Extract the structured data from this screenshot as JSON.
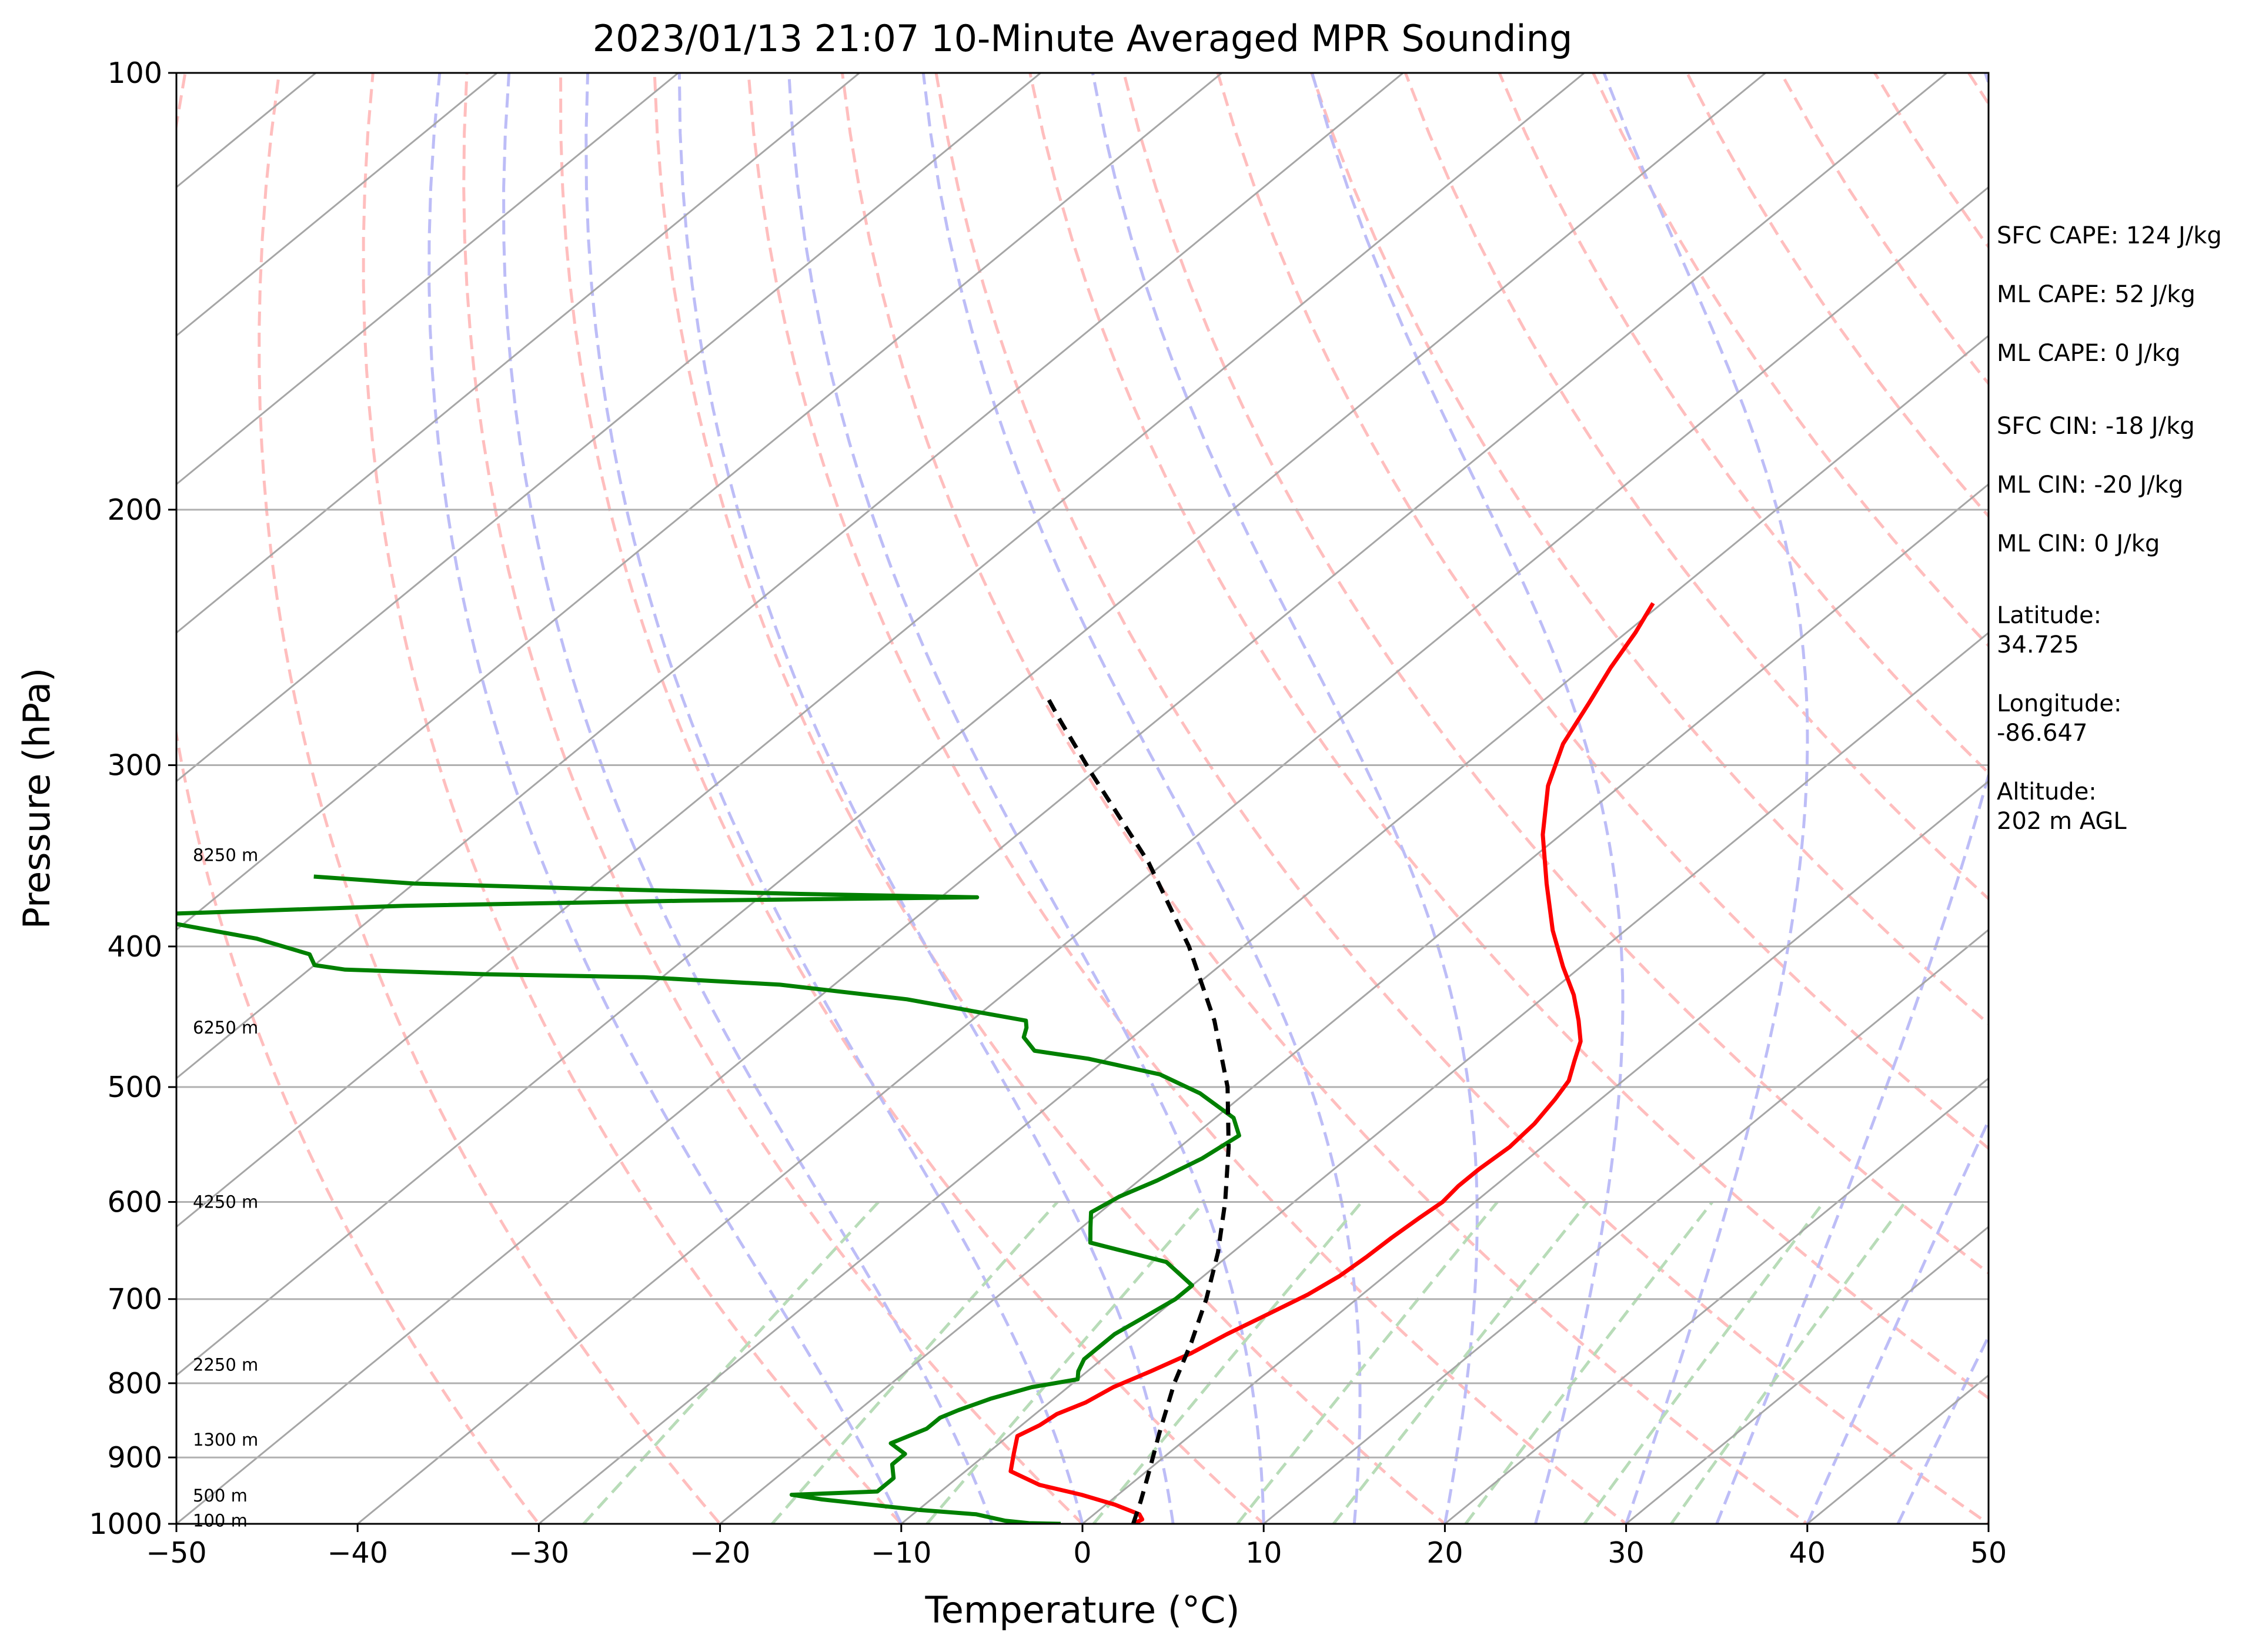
{
  "chart_data": {
    "type": "skew-t log-p",
    "title": "2023/01/13 21:07 10-Minute Averaged MPR Sounding",
    "xlabel": "Temperature (°C)",
    "ylabel": "Pressure (hPa)",
    "xlim": [
      -50,
      50
    ],
    "ylim": [
      1000,
      100
    ],
    "y_scale": "log",
    "x_ticks": [
      "−50",
      "−40",
      "−30",
      "−20",
      "−10",
      "0",
      "10",
      "20",
      "30",
      "40",
      "50"
    ],
    "y_ticks": [
      "100",
      "200",
      "300",
      "400",
      "500",
      "600",
      "700",
      "800",
      "900",
      "1000"
    ],
    "grid": true,
    "height_labels": [
      {
        "text": "8250 m",
        "pressure": 346
      },
      {
        "text": "6250 m",
        "pressure": 455
      },
      {
        "text": "4250 m",
        "pressure": 600
      },
      {
        "text": "2250 m",
        "pressure": 777
      },
      {
        "text": "1300 m",
        "pressure": 875
      },
      {
        "text": "500 m",
        "pressure": 956
      },
      {
        "text": "100 m",
        "pressure": 995
      }
    ],
    "series": [
      {
        "role": "temperature",
        "color": "#ff0000",
        "points": [
          [
            2.8,
            1000
          ],
          [
            3.0,
            993
          ],
          [
            2.5,
            985
          ],
          [
            0.5,
            970
          ],
          [
            -2,
            955
          ],
          [
            -5,
            940
          ],
          [
            -7.5,
            920
          ],
          [
            -8.5,
            895
          ],
          [
            -9.5,
            870
          ],
          [
            -9,
            855
          ],
          [
            -8.8,
            840
          ],
          [
            -8,
            825
          ],
          [
            -7.5,
            805
          ],
          [
            -6.5,
            785
          ],
          [
            -5.5,
            763
          ],
          [
            -4.8,
            740
          ],
          [
            -4,
            720
          ],
          [
            -3,
            695
          ],
          [
            -2.5,
            675
          ],
          [
            -2.3,
            655
          ],
          [
            -2.2,
            635
          ],
          [
            -2,
            615
          ],
          [
            -1.8,
            600
          ],
          [
            -2,
            585
          ],
          [
            -2,
            570
          ],
          [
            -1.8,
            550
          ],
          [
            -2,
            530
          ],
          [
            -2.5,
            510
          ],
          [
            -3,
            495
          ],
          [
            -4,
            480
          ],
          [
            -5,
            465
          ],
          [
            -6.5,
            450
          ],
          [
            -8.5,
            432
          ],
          [
            -11,
            413
          ],
          [
            -14,
            390
          ],
          [
            -17.5,
            362
          ],
          [
            -21,
            335
          ],
          [
            -24,
            310
          ],
          [
            -26,
            290
          ],
          [
            -27.3,
            272
          ],
          [
            -28.5,
            257
          ],
          [
            -29.5,
            243
          ],
          [
            -30.5,
            232
          ]
        ]
      },
      {
        "role": "dewpoint",
        "color": "#008000",
        "points": [
          [
            -1.2,
            1000
          ],
          [
            -3,
            999
          ],
          [
            -4.5,
            995
          ],
          [
            -6.5,
            985
          ],
          [
            -10,
            978
          ],
          [
            -13,
            970
          ],
          [
            -16,
            962
          ],
          [
            -18,
            955
          ],
          [
            -13.5,
            950
          ],
          [
            -13.5,
            945
          ],
          [
            -13.5,
            930
          ],
          [
            -14.5,
            910
          ],
          [
            -14.5,
            895
          ],
          [
            -16,
            880
          ],
          [
            -15,
            860
          ],
          [
            -15,
            845
          ],
          [
            -14.5,
            835
          ],
          [
            -13.5,
            820
          ],
          [
            -12,
            805
          ],
          [
            -10,
            795
          ],
          [
            -10.5,
            785
          ],
          [
            -11,
            770
          ],
          [
            -11,
            755
          ],
          [
            -11,
            740
          ],
          [
            -10.5,
            720
          ],
          [
            -10,
            700
          ],
          [
            -10,
            685
          ],
          [
            -13,
            660
          ],
          [
            -18.5,
            640
          ],
          [
            -19.5,
            625
          ],
          [
            -20.5,
            610
          ],
          [
            -20,
            595
          ],
          [
            -19,
            580
          ],
          [
            -18,
            560
          ],
          [
            -17.5,
            540
          ],
          [
            -19,
            525
          ],
          [
            -22.5,
            505
          ],
          [
            -26,
            490
          ],
          [
            -31,
            478
          ],
          [
            -34.5,
            472
          ],
          [
            -36,
            462
          ],
          [
            -36.5,
            455
          ],
          [
            -37,
            450
          ],
          [
            -45,
            435
          ],
          [
            -53,
            425
          ],
          [
            -61,
            420
          ],
          [
            -70,
            418
          ],
          [
            -78,
            415
          ],
          [
            -80,
            412
          ],
          [
            -81,
            405
          ],
          [
            -85,
            395
          ],
          [
            -88,
            390
          ],
          [
            -91,
            385
          ],
          [
            -92,
            380
          ],
          [
            -79,
            375
          ],
          [
            -64,
            372
          ],
          [
            -48,
            370
          ],
          [
            -58,
            368
          ],
          [
            -70,
            365
          ],
          [
            -80,
            362
          ],
          [
            -86,
            358
          ]
        ]
      },
      {
        "role": "parcel",
        "color": "#000000",
        "points": [
          [
            2.8,
            1000
          ],
          [
            1.7,
            965
          ],
          [
            0.5,
            930
          ],
          [
            -1.9,
            865
          ],
          [
            -4.4,
            800
          ],
          [
            -6.2,
            750
          ],
          [
            -8.3,
            700
          ],
          [
            -10.8,
            650
          ],
          [
            -13.8,
            600
          ],
          [
            -17.3,
            550
          ],
          [
            -21.4,
            500
          ],
          [
            -26.6,
            450
          ],
          [
            -33,
            400
          ],
          [
            -40.9,
            350
          ],
          [
            -49.8,
            305
          ],
          [
            -55.2,
            280
          ],
          [
            -57.9,
            268
          ]
        ]
      }
    ],
    "thermodynamics": {
      "sfc_cape": "SFC CAPE: 124 J/kg",
      "ml_cape": "ML CAPE: 52 J/kg",
      "mu_cape": "ML CAPE: 0 J/kg",
      "sfc_cin": "SFC CIN: -18 J/kg",
      "ml_cin": "ML CIN: -20 J/kg",
      "mu_cin": "ML CIN: 0 J/kg",
      "latitude_label": "Latitude:",
      "latitude": "34.725",
      "longitude_label": "Longitude:",
      "longitude": "-86.647",
      "altitude_label": "Altitude:",
      "altitude": "202 m AGL"
    }
  },
  "colors": {
    "temperature": "#ff0000",
    "dewpoint": "#008000",
    "parcel": "#000000",
    "isotherm": "#a6a6a6",
    "dry_adiabat": "#ffbebe",
    "moist_adiabat": "#bdbdf7",
    "mixing_ratio": "#b8dcb8",
    "grid": "#b0b0b0"
  }
}
